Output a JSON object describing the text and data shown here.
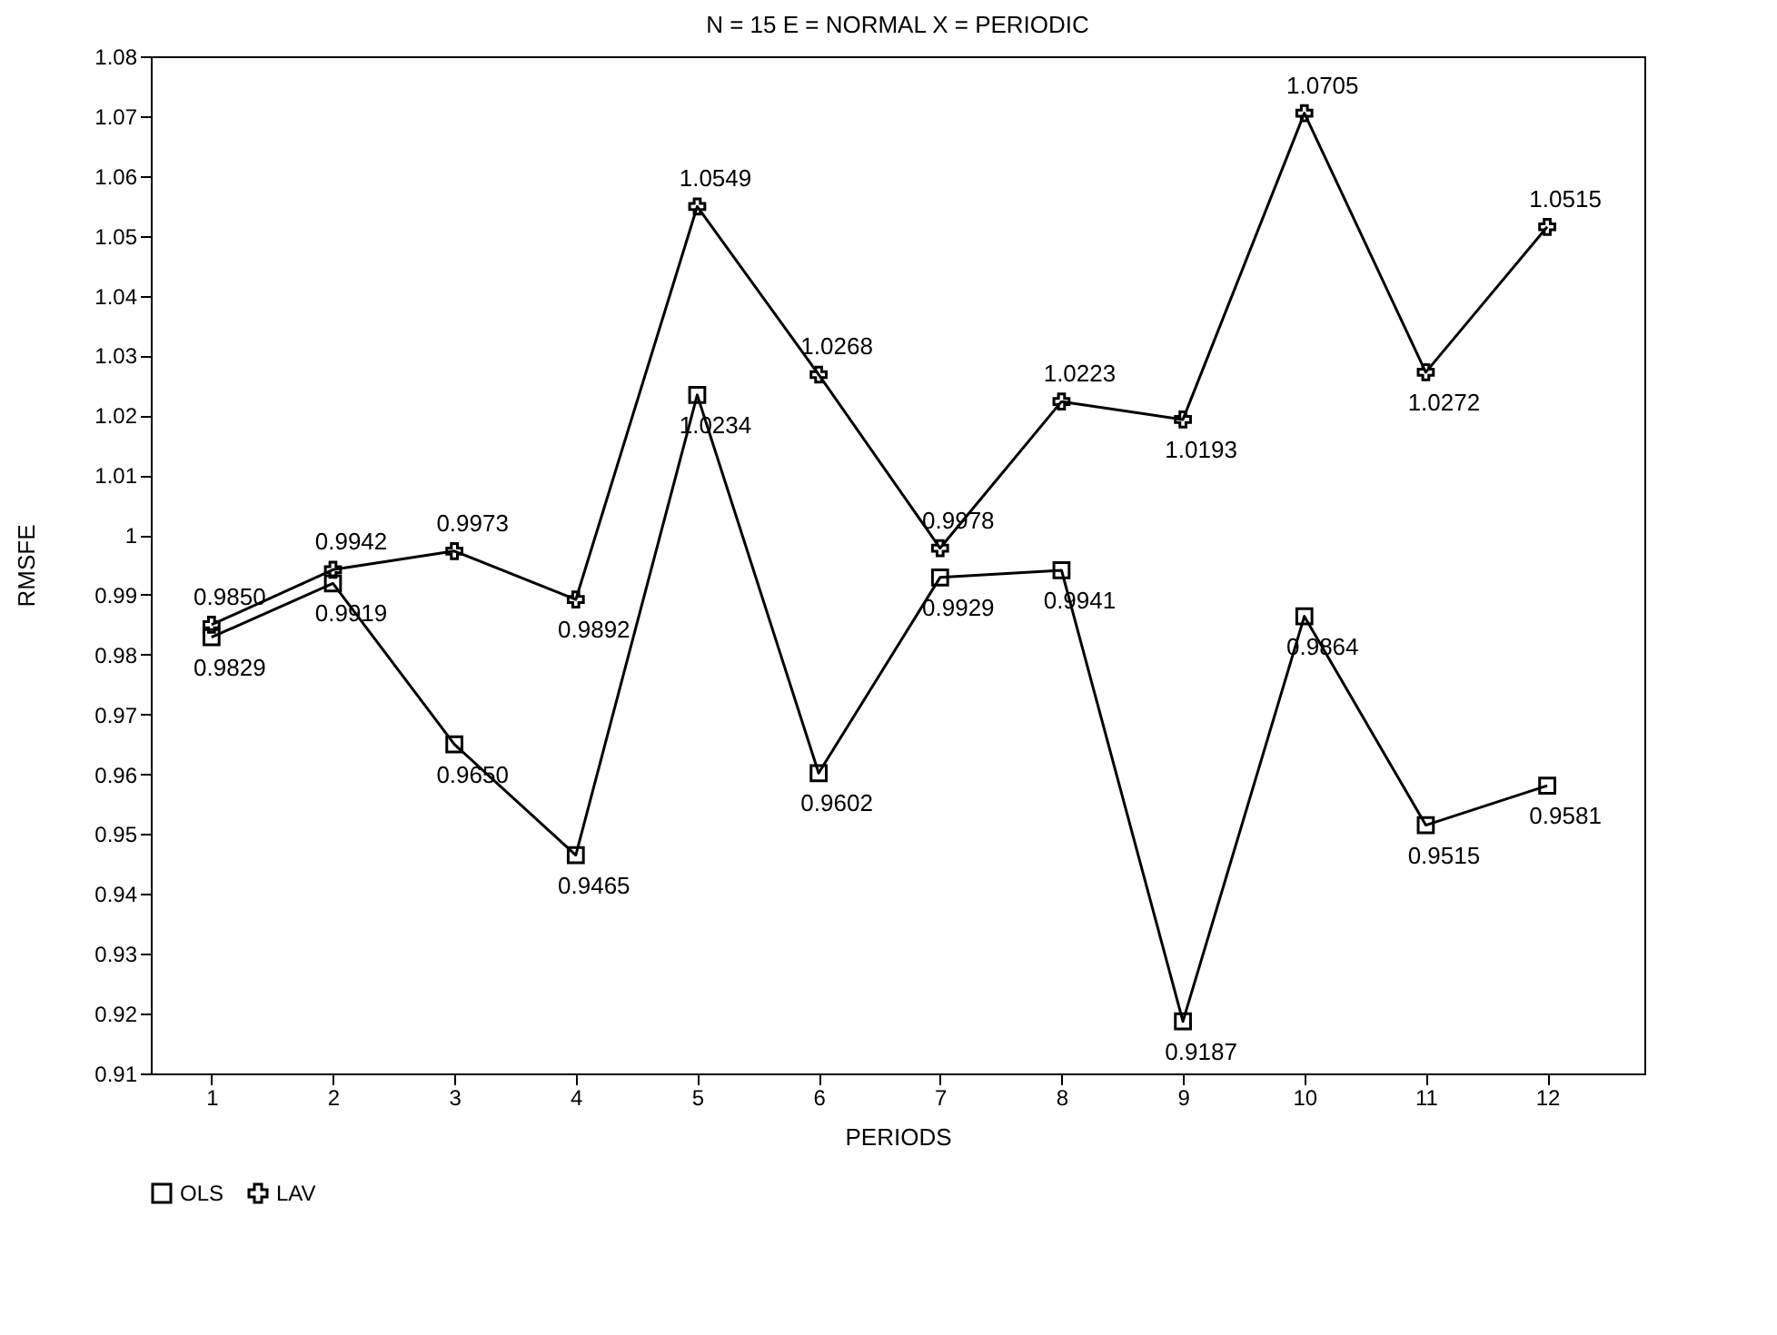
{
  "chart_data": {
    "type": "line",
    "title": "N = 15  E = NORMAL  X = PERIODIC",
    "xlabel": "PERIODS",
    "ylabel": "RMSFE",
    "x": [
      1,
      2,
      3,
      4,
      5,
      6,
      7,
      8,
      9,
      10,
      11,
      12
    ],
    "series": [
      {
        "name": "OLS",
        "color": "#000000",
        "marker": "square",
        "values": [
          0.9829,
          0.9919,
          0.965,
          0.9465,
          1.0234,
          0.9602,
          0.9929,
          0.9941,
          0.9187,
          0.9864,
          0.9515,
          0.9581
        ],
        "value_labels": [
          "0.9829",
          "0.9919",
          "0.9650",
          "0.9465",
          "1.0234",
          "0.9602",
          "0.9929",
          "0.9941",
          "0.9187",
          "0.9864",
          "0.9515",
          "0.9581"
        ]
      },
      {
        "name": "LAV",
        "color": "#000000",
        "marker": "cross",
        "values": [
          0.985,
          0.9942,
          0.9973,
          0.9892,
          1.0549,
          1.0268,
          0.9978,
          1.0223,
          1.0193,
          1.0705,
          1.0272,
          1.0515
        ],
        "value_labels": [
          "0.9850",
          "0.9942",
          "0.9973",
          "0.9892",
          "1.0549",
          "1.0268",
          "0.9978",
          "1.0223",
          "1.0193",
          "1.0705",
          "1.0272",
          "1.0515"
        ]
      }
    ],
    "xlim": [
      0.5,
      12.8
    ],
    "xticks": [
      1,
      2,
      3,
      4,
      5,
      6,
      7,
      8,
      9,
      10,
      11,
      12
    ],
    "ylim": [
      0.91,
      1.08
    ],
    "yticks": [
      0.91,
      0.92,
      0.93,
      0.94,
      0.95,
      0.96,
      0.97,
      0.98,
      0.99,
      1,
      1.01,
      1.02,
      1.03,
      1.04,
      1.05,
      1.06,
      1.07,
      1.08
    ],
    "grid": false,
    "legend": "bottom",
    "line_style": "solid"
  }
}
